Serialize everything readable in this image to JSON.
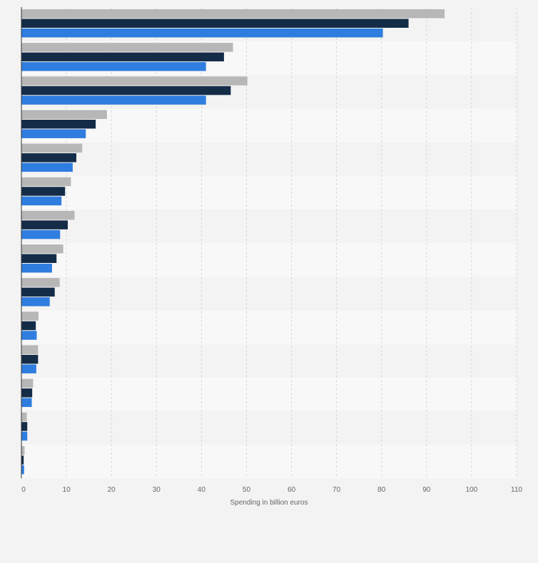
{
  "chart_data": {
    "type": "bar",
    "orientation": "horizontal",
    "xlabel": "Spending in billion euros",
    "ylabel": "",
    "xlim": [
      0,
      110
    ],
    "xticks": [
      0,
      10,
      20,
      30,
      40,
      50,
      60,
      70,
      80,
      90,
      100,
      110
    ],
    "grid": true,
    "legend": "none",
    "categories": [
      "",
      "",
      "",
      "",
      "",
      "",
      "",
      "",
      "",
      "",
      "",
      "",
      "",
      ""
    ],
    "series": [
      {
        "color": "#b7b7b7",
        "values": [
          94,
          47,
          50.2,
          19,
          13.5,
          11,
          11.8,
          9.3,
          8.5,
          3.8,
          3.7,
          2.6,
          1.2,
          0.7
        ]
      },
      {
        "color": "#142c48",
        "values": [
          86,
          45,
          46.5,
          16.5,
          12.2,
          9.7,
          10.3,
          7.8,
          7.4,
          3.2,
          3.7,
          2.4,
          1.3,
          0.5
        ]
      },
      {
        "color": "#2f7ddf",
        "values": [
          80.3,
          41,
          41,
          14.3,
          11.4,
          8.9,
          8.6,
          6.8,
          6.3,
          3.4,
          3.3,
          2.3,
          1.3,
          0.6
        ]
      }
    ]
  }
}
